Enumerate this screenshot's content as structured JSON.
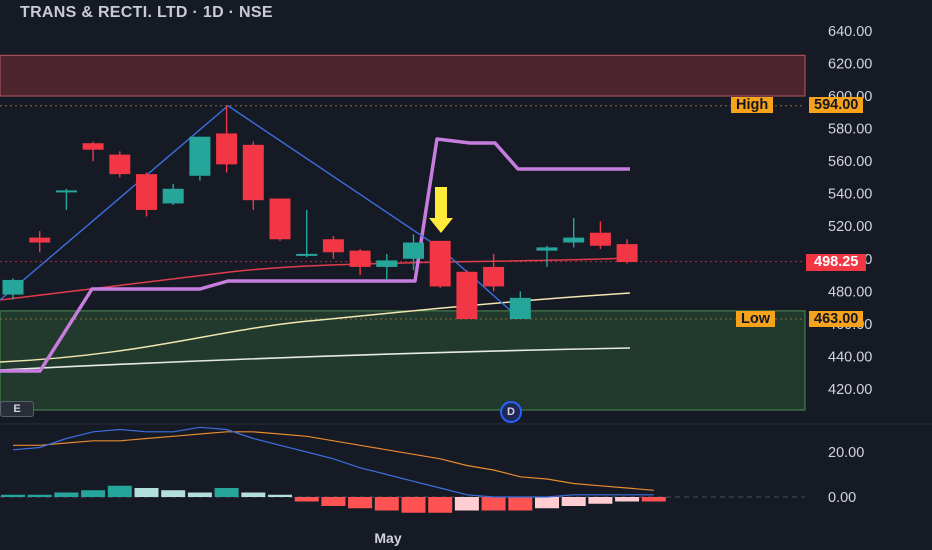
{
  "header": {
    "title": "TRANS & RECTI. LTD · 1D · NSE"
  },
  "tags": {
    "high": {
      "label": "High",
      "value": "594.00"
    },
    "low": {
      "label": "Low",
      "value": "463.00"
    },
    "last": {
      "value": "498.25"
    }
  },
  "markers": {
    "e": "E",
    "d": "D"
  },
  "colors": {
    "up": "#26a69a",
    "down": "#f23645",
    "tag": "#f7a21b",
    "last": "#f23645",
    "path": "#c77dde",
    "zigzag": "#3b6fe0"
  },
  "chart_data": [
    {
      "type": "candlestick",
      "title": "",
      "xlabel": "",
      "ylabel": "",
      "x_ticks": [
        "May"
      ],
      "y_ticks": [
        420,
        440,
        460,
        480,
        500,
        520,
        540,
        560,
        580,
        600,
        620,
        640
      ],
      "y_tick_labels": [
        "420.00",
        "440.00",
        "460.00",
        "480.00",
        "500.00",
        "520.00",
        "540.00",
        "560.00",
        "580.00",
        "600.00",
        "620.00",
        "640.00"
      ],
      "ylim": [
        408,
        648
      ],
      "bars": [
        {
          "o": 478,
          "h": 488,
          "l": 475,
          "c": 487
        },
        {
          "o": 513,
          "h": 517,
          "l": 504,
          "c": 510
        },
        {
          "o": 541,
          "h": 543,
          "l": 530,
          "c": 542
        },
        {
          "o": 571,
          "h": 572,
          "l": 560,
          "c": 567
        },
        {
          "o": 564,
          "h": 566,
          "l": 550,
          "c": 552
        },
        {
          "o": 552,
          "h": 553,
          "l": 526,
          "c": 530
        },
        {
          "o": 534,
          "h": 546,
          "l": 533,
          "c": 543
        },
        {
          "o": 551,
          "h": 575,
          "l": 548,
          "c": 575
        },
        {
          "o": 577,
          "h": 594,
          "l": 553,
          "c": 558
        },
        {
          "o": 570,
          "h": 572,
          "l": 530,
          "c": 536
        },
        {
          "o": 537,
          "h": 537,
          "l": 511,
          "c": 512
        },
        {
          "o": 503,
          "h": 530,
          "l": 501,
          "c": 503
        },
        {
          "o": 512,
          "h": 514,
          "l": 500,
          "c": 504
        },
        {
          "o": 505,
          "h": 506,
          "l": 490,
          "c": 495
        },
        {
          "o": 495,
          "h": 503,
          "l": 487,
          "c": 499
        },
        {
          "o": 500,
          "h": 515,
          "l": 493,
          "c": 510
        },
        {
          "o": 511,
          "h": 511,
          "l": 482,
          "c": 483
        },
        {
          "o": 492,
          "h": 493,
          "l": 463,
          "c": 463
        },
        {
          "o": 495,
          "h": 503,
          "l": 480,
          "c": 483
        },
        {
          "o": 463,
          "h": 480,
          "l": 463,
          "c": 476
        },
        {
          "o": 505,
          "h": 508,
          "l": 495,
          "c": 507
        },
        {
          "o": 510,
          "h": 525,
          "l": 507,
          "c": 513
        },
        {
          "o": 516,
          "h": 523,
          "l": 506,
          "c": 508
        },
        {
          "o": 509,
          "h": 512,
          "l": 497,
          "c": 498
        }
      ],
      "zones": [
        {
          "name": "supply",
          "from": 600,
          "to": 625
        },
        {
          "name": "demand",
          "from": 408,
          "to": 468
        }
      ],
      "high": 594,
      "low": 463,
      "last": 498.25
    },
    {
      "type": "histogram",
      "title": "",
      "y_ticks": [
        0,
        20
      ],
      "y_tick_labels": [
        "0.00",
        "20.00"
      ],
      "ylim": [
        -9,
        36
      ],
      "values": [
        1,
        1,
        2,
        3,
        5,
        4,
        3,
        2,
        4,
        2,
        1,
        -2,
        -4,
        -5,
        -6,
        -7,
        -7,
        -6,
        -6,
        -6,
        -5,
        -4,
        -3,
        -2,
        -2
      ],
      "macd": [
        21,
        22,
        26,
        29,
        30,
        29,
        29,
        31,
        30,
        26,
        23,
        20,
        17,
        13,
        10,
        7,
        4,
        1,
        0,
        0,
        0,
        1,
        1,
        1,
        1
      ],
      "signal": [
        23,
        23,
        24,
        25,
        25,
        26,
        27,
        28,
        29,
        29,
        28,
        27,
        25,
        23,
        21,
        19,
        17,
        14,
        12,
        9,
        8,
        6,
        5,
        4,
        3
      ]
    }
  ]
}
